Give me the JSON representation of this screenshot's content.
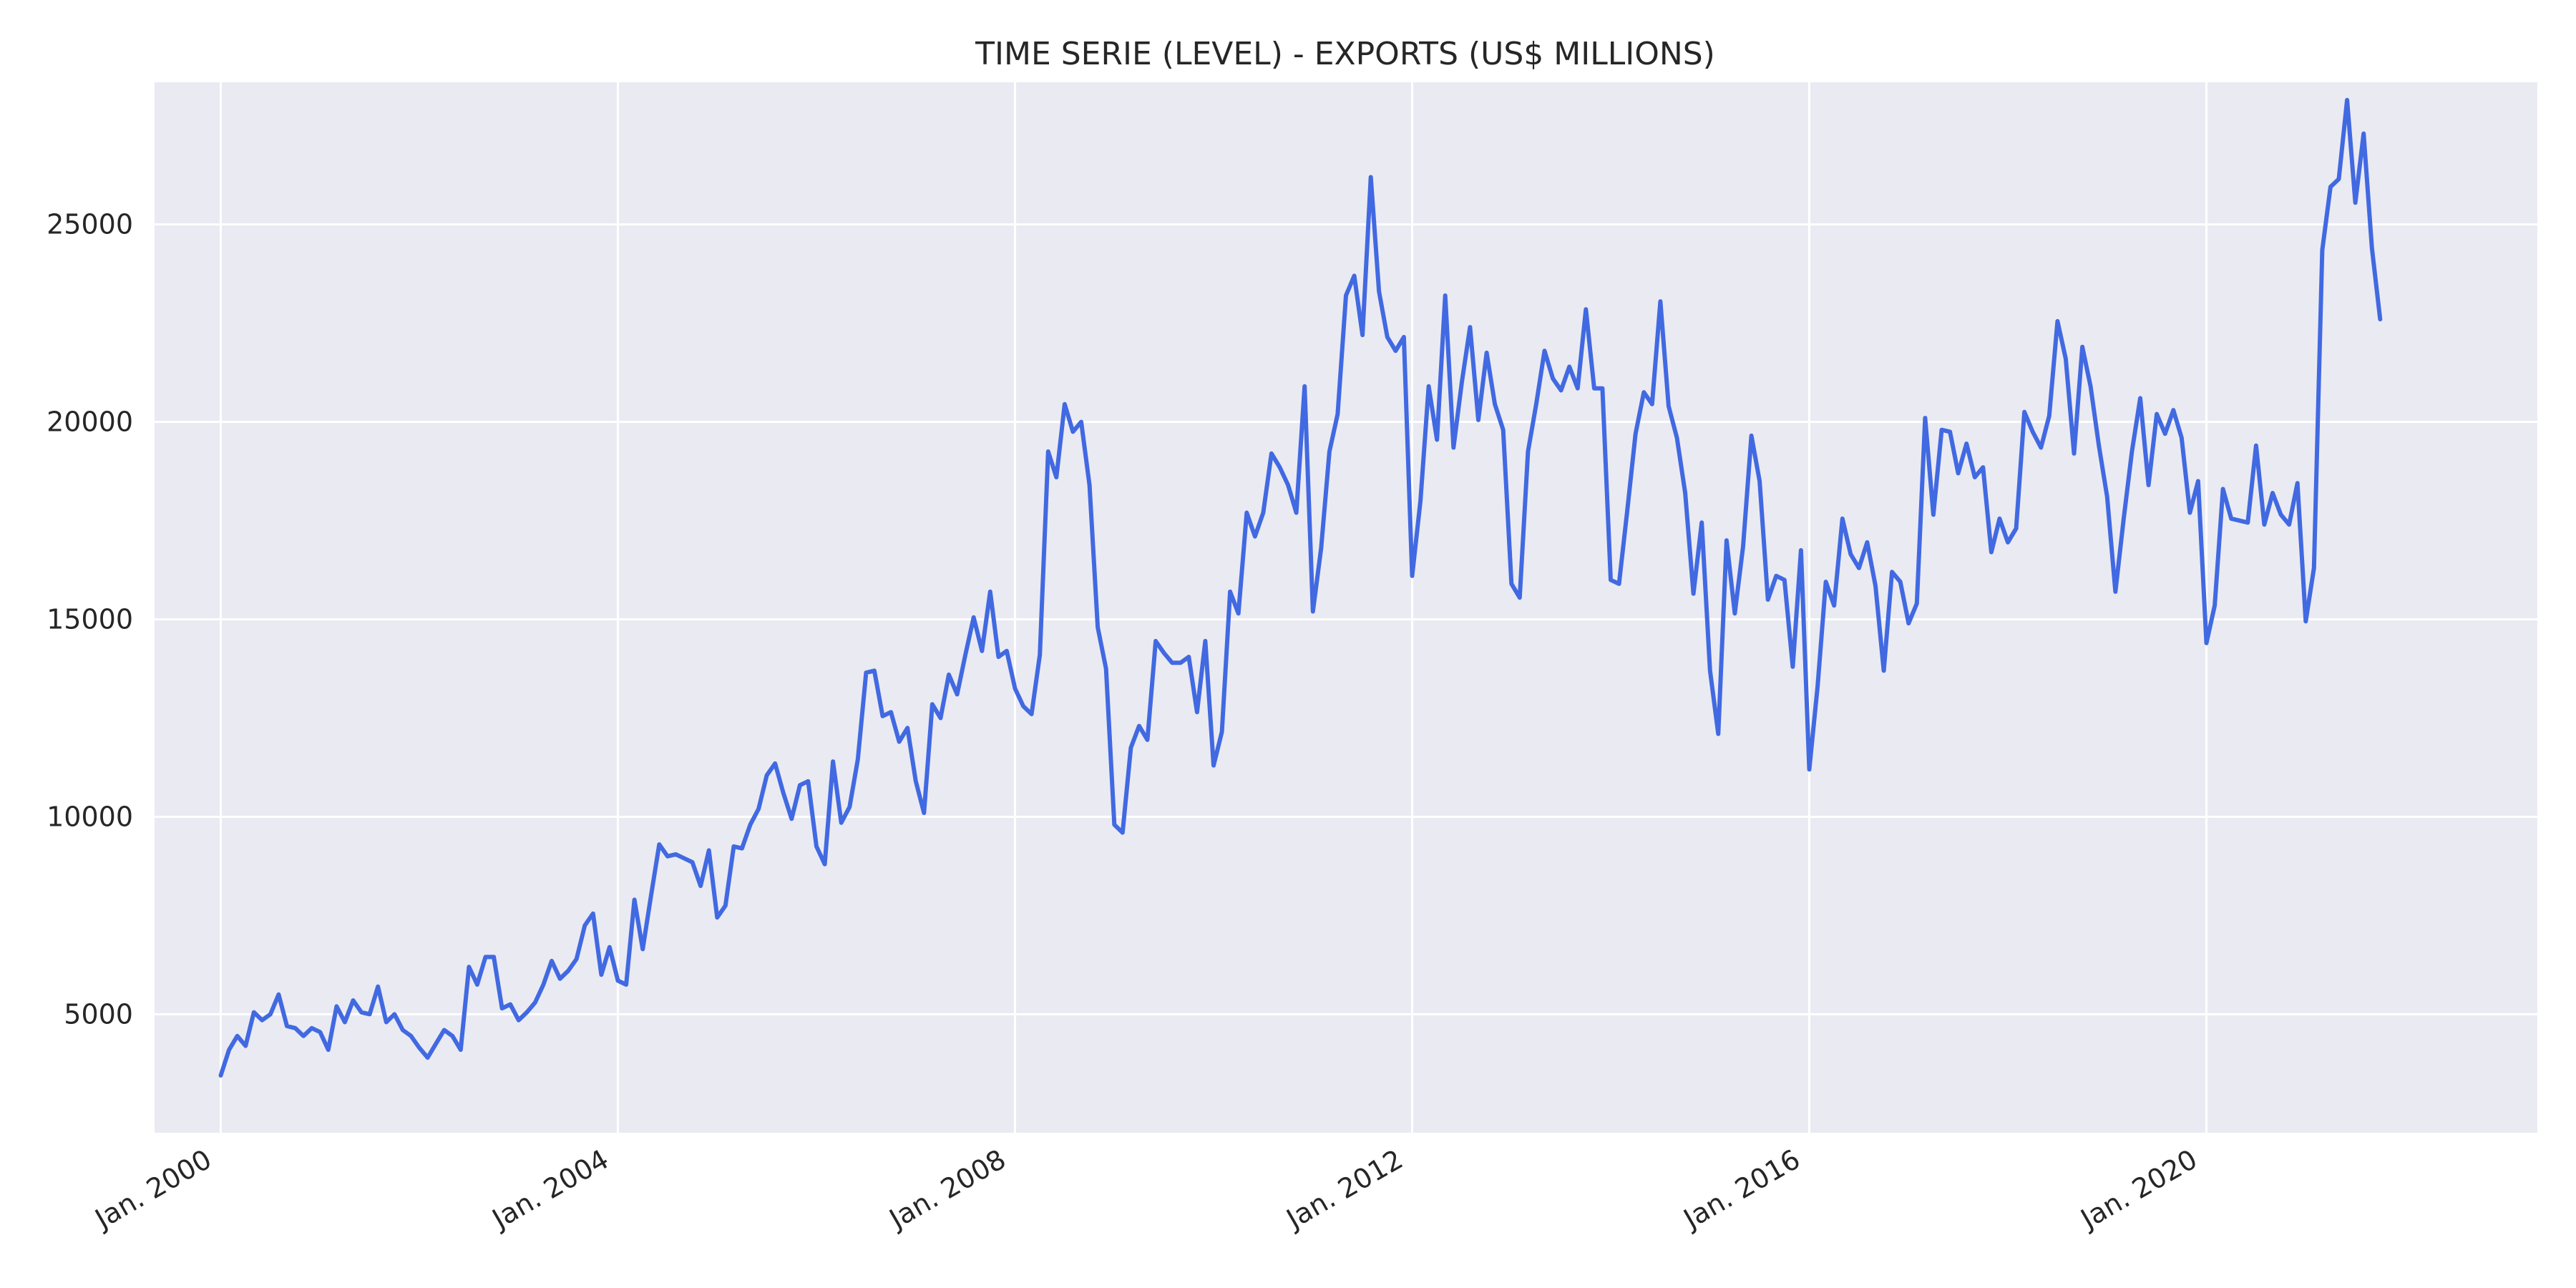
{
  "chart_data": {
    "type": "line",
    "title": "TIME SERIE (LEVEL) - EXPORTS (US$ MILLIONS)",
    "xlabel": "",
    "ylabel": "",
    "x_start": "2000-01",
    "x_end": "2021-10",
    "xlim": [
      "1999-05",
      "2023-05"
    ],
    "ylim": [
      2000,
      28600
    ],
    "grid": true,
    "legend": "none",
    "colors": {
      "line": "#4169e1",
      "plot_background": "#eaeaf2",
      "grid": "#ffffff"
    },
    "yticks": [
      5000,
      10000,
      15000,
      20000,
      25000
    ],
    "ytick_labels": [
      "5000",
      "10000",
      "15000",
      "20000",
      "25000"
    ],
    "xticks": [
      "2000-01",
      "2004-01",
      "2008-01",
      "2012-01",
      "2016-01",
      "2020-01"
    ],
    "xtick_labels": [
      "Jan. 2000",
      "Jan. 2004",
      "Jan. 2008",
      "Jan. 2012",
      "Jan. 2016",
      "Jan. 2020"
    ],
    "series": [
      {
        "values": [
          3450,
          4100,
          4450,
          4200,
          5050,
          4850,
          5000,
          5500,
          4700,
          4650,
          4450,
          4650,
          4550,
          4100,
          5200,
          4800,
          5350,
          5050,
          5000,
          5700,
          4800,
          5000,
          4600,
          4450,
          4150,
          3900,
          4250,
          4600,
          4450,
          4100,
          6200,
          5750,
          6450,
          6450,
          5150,
          5250,
          4850,
          5050,
          5300,
          5750,
          6350,
          5900,
          6100,
          6400,
          7250,
          7550,
          6000,
          6700,
          5850,
          5750,
          7900,
          6650,
          8000,
          9300,
          9000,
          9050,
          8950,
          8850,
          8250,
          9150,
          7450,
          7750,
          9250,
          9200,
          9800,
          10200,
          11050,
          11350,
          10600,
          9950,
          10800,
          10900,
          9250,
          8800,
          11400,
          9850,
          10250,
          11450,
          13650,
          13700,
          12550,
          12650,
          11900,
          12250,
          10900,
          10100,
          12850,
          12500,
          13600,
          13100,
          14100,
          15050,
          14200,
          15700,
          14050,
          14200,
          13250,
          12800,
          12600,
          14100,
          19250,
          18600,
          20450,
          19750,
          20000,
          18400,
          14800,
          13750,
          9800,
          9600,
          11750,
          12300,
          11950,
          14450,
          14150,
          13900,
          13900,
          14050,
          12650,
          14450,
          11300,
          12150,
          15700,
          15150,
          17700,
          17100,
          17700,
          19200,
          18850,
          18400,
          17700,
          20900,
          15200,
          16800,
          19250,
          20200,
          23200,
          23700,
          22200,
          26200,
          23300,
          22150,
          21800,
          22150,
          16100,
          18000,
          20900,
          19550,
          23200,
          19350,
          21000,
          22400,
          20050,
          21750,
          20450,
          19800,
          15900,
          15550,
          19250,
          20450,
          21800,
          21100,
          20800,
          21400,
          20850,
          22850,
          20850,
          20850,
          16000,
          15900,
          17750,
          19700,
          20750,
          20450,
          23050,
          20400,
          19600,
          18200,
          15650,
          17450,
          13700,
          12100,
          17000,
          15150,
          16850,
          19650,
          18500,
          15500,
          16100,
          16000,
          13800,
          16750,
          11200,
          13300,
          15950,
          15350,
          17550,
          16650,
          16300,
          16950,
          15850,
          13700,
          16200,
          15950,
          14900,
          15400,
          20100,
          17650,
          19800,
          19750,
          18700,
          19450,
          18600,
          18850,
          16700,
          17550,
          16950,
          17300,
          20250,
          19750,
          19350,
          20150,
          22550,
          21600,
          19200,
          21900,
          20900,
          19400,
          18100,
          15700,
          17550,
          19250,
          20600,
          18400,
          20200,
          19700,
          20300,
          19600,
          17700,
          18500,
          14400,
          15350,
          18300,
          17550,
          17500,
          17450,
          19400,
          17400,
          18200,
          17650,
          17400,
          18450,
          14950,
          16300,
          24350,
          25950,
          26150,
          28150,
          25550,
          27300,
          24400,
          22600
        ]
      }
    ]
  }
}
